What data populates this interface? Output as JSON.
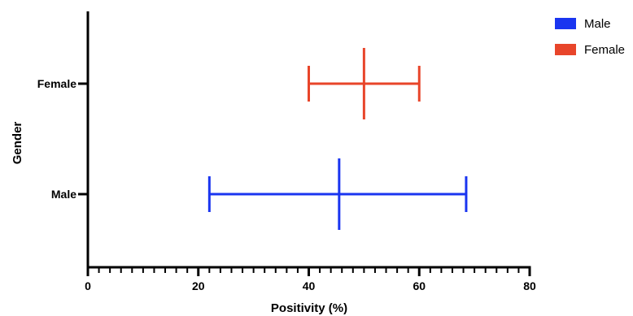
{
  "chart_data": {
    "type": "error-bar",
    "xlabel": "Positivity (%)",
    "ylabel": "Gender",
    "xlim": [
      0,
      80
    ],
    "x_ticks": [
      "0",
      "20",
      "40",
      "60",
      "80"
    ],
    "x_minor_step": 2,
    "categories": [
      "Female",
      "Male"
    ],
    "series": [
      {
        "name": "Female",
        "color": "#e8452a",
        "mean": 50,
        "low": 40,
        "high": 60
      },
      {
        "name": "Male",
        "color": "#1a35f0",
        "mean": 45.5,
        "low": 22,
        "high": 68.5
      }
    ],
    "legend": {
      "position": "top-right",
      "items": [
        {
          "label": "Male",
          "color": "#1a35f0"
        },
        {
          "label": "Female",
          "color": "#e8452a"
        }
      ]
    },
    "grid": false
  }
}
